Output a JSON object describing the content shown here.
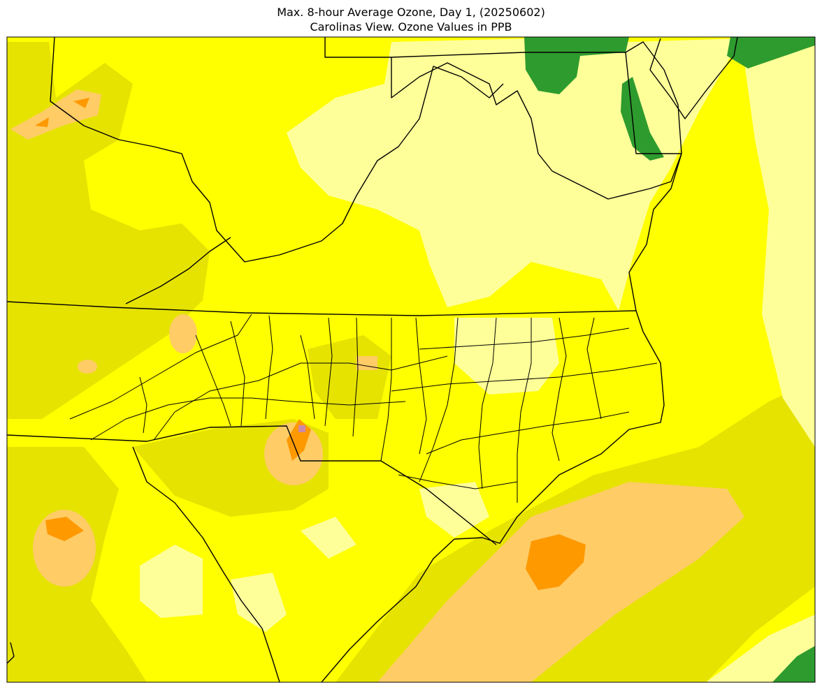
{
  "header": {
    "title": "Max. 8-hour Average Ozone, Day 1, (20250602)",
    "subtitle": "Carolinas View. Ozone Values in PPB"
  }
}
